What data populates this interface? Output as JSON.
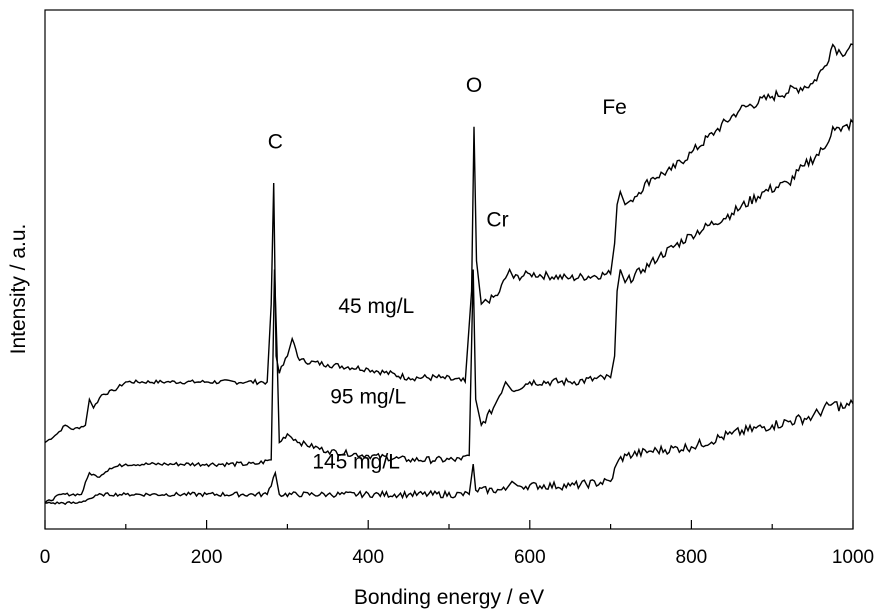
{
  "chart_data": {
    "type": "line",
    "xlabel": "Bonding energy / eV",
    "ylabel": "Intensity / a.u.",
    "xlim": [
      0,
      1000
    ],
    "xticks": [
      "0",
      "200",
      "400",
      "600",
      "800",
      "1000"
    ],
    "yticks_shown": false,
    "grid": false,
    "legend": "none (series labeled inline)",
    "y_units": "arbitrary",
    "series": [
      {
        "name": "45 mg/L",
        "color": "#000000",
        "points": [
          [
            0,
            0.2
          ],
          [
            15,
            0.22
          ],
          [
            25,
            0.24
          ],
          [
            35,
            0.23
          ],
          [
            50,
            0.24
          ],
          [
            55,
            0.3
          ],
          [
            60,
            0.28
          ],
          [
            70,
            0.31
          ],
          [
            85,
            0.32
          ],
          [
            100,
            0.34
          ],
          [
            150,
            0.34
          ],
          [
            200,
            0.34
          ],
          [
            250,
            0.34
          ],
          [
            275,
            0.34
          ],
          [
            280,
            0.52
          ],
          [
            283,
            0.8
          ],
          [
            286,
            0.4
          ],
          [
            290,
            0.36
          ],
          [
            300,
            0.4
          ],
          [
            306,
            0.44
          ],
          [
            315,
            0.39
          ],
          [
            350,
            0.38
          ],
          [
            400,
            0.37
          ],
          [
            450,
            0.35
          ],
          [
            490,
            0.35
          ],
          [
            520,
            0.34
          ],
          [
            528,
            0.55
          ],
          [
            531,
            0.93
          ],
          [
            534,
            0.62
          ],
          [
            540,
            0.52
          ],
          [
            560,
            0.54
          ],
          [
            575,
            0.6
          ],
          [
            580,
            0.58
          ],
          [
            600,
            0.59
          ],
          [
            650,
            0.58
          ],
          [
            700,
            0.59
          ],
          [
            705,
            0.66
          ],
          [
            708,
            0.75
          ],
          [
            712,
            0.78
          ],
          [
            718,
            0.75
          ],
          [
            725,
            0.76
          ],
          [
            750,
            0.81
          ],
          [
            775,
            0.83
          ],
          [
            800,
            0.87
          ],
          [
            830,
            0.92
          ],
          [
            860,
            0.97
          ],
          [
            900,
            1.0
          ],
          [
            950,
            1.03
          ],
          [
            965,
            1.07
          ],
          [
            975,
            1.12
          ],
          [
            985,
            1.1
          ],
          [
            1000,
            1.12
          ]
        ]
      },
      {
        "name": "95 mg/L",
        "color": "#000000",
        "points": [
          [
            0,
            0.06
          ],
          [
            20,
            0.08
          ],
          [
            45,
            0.08
          ],
          [
            55,
            0.13
          ],
          [
            65,
            0.12
          ],
          [
            80,
            0.14
          ],
          [
            100,
            0.15
          ],
          [
            150,
            0.15
          ],
          [
            200,
            0.15
          ],
          [
            260,
            0.15
          ],
          [
            280,
            0.16
          ],
          [
            284,
            0.6
          ],
          [
            287,
            0.42
          ],
          [
            290,
            0.2
          ],
          [
            300,
            0.22
          ],
          [
            315,
            0.2
          ],
          [
            350,
            0.18
          ],
          [
            400,
            0.17
          ],
          [
            450,
            0.16
          ],
          [
            515,
            0.16
          ],
          [
            525,
            0.17
          ],
          [
            530,
            0.6
          ],
          [
            533,
            0.3
          ],
          [
            540,
            0.24
          ],
          [
            555,
            0.28
          ],
          [
            570,
            0.34
          ],
          [
            578,
            0.32
          ],
          [
            600,
            0.34
          ],
          [
            650,
            0.34
          ],
          [
            700,
            0.35
          ],
          [
            705,
            0.4
          ],
          [
            708,
            0.55
          ],
          [
            712,
            0.6
          ],
          [
            718,
            0.57
          ],
          [
            740,
            0.6
          ],
          [
            760,
            0.63
          ],
          [
            800,
            0.68
          ],
          [
            850,
            0.73
          ],
          [
            890,
            0.78
          ],
          [
            920,
            0.8
          ],
          [
            940,
            0.84
          ],
          [
            965,
            0.88
          ],
          [
            975,
            0.93
          ],
          [
            985,
            0.92
          ],
          [
            1000,
            0.94
          ]
        ]
      },
      {
        "name": "145 mg/L",
        "color": "#000000",
        "points": [
          [
            0,
            0.06
          ],
          [
            40,
            0.06
          ],
          [
            55,
            0.07
          ],
          [
            70,
            0.08
          ],
          [
            100,
            0.08
          ],
          [
            200,
            0.08
          ],
          [
            275,
            0.08
          ],
          [
            285,
            0.13
          ],
          [
            290,
            0.08
          ],
          [
            350,
            0.08
          ],
          [
            450,
            0.08
          ],
          [
            525,
            0.08
          ],
          [
            530,
            0.15
          ],
          [
            533,
            0.09
          ],
          [
            570,
            0.09
          ],
          [
            578,
            0.11
          ],
          [
            585,
            0.1
          ],
          [
            650,
            0.1
          ],
          [
            700,
            0.11
          ],
          [
            710,
            0.16
          ],
          [
            720,
            0.17
          ],
          [
            750,
            0.18
          ],
          [
            800,
            0.19
          ],
          [
            850,
            0.22
          ],
          [
            900,
            0.24
          ],
          [
            950,
            0.26
          ],
          [
            975,
            0.29
          ],
          [
            990,
            0.28
          ],
          [
            1000,
            0.29
          ]
        ]
      }
    ],
    "annotations": [
      {
        "text": "C",
        "x": 285,
        "y": 0.88
      },
      {
        "text": "O",
        "x": 531,
        "y": 1.01
      },
      {
        "text": "Cr",
        "x": 560,
        "y": 0.7
      },
      {
        "text": "Fe",
        "x": 705,
        "y": 0.96
      },
      {
        "text": "45 mg/L",
        "x": 410,
        "y": 0.5
      },
      {
        "text": "95 mg/L",
        "x": 400,
        "y": 0.29
      },
      {
        "text": "145 mg/L",
        "x": 385,
        "y": 0.14
      }
    ]
  }
}
